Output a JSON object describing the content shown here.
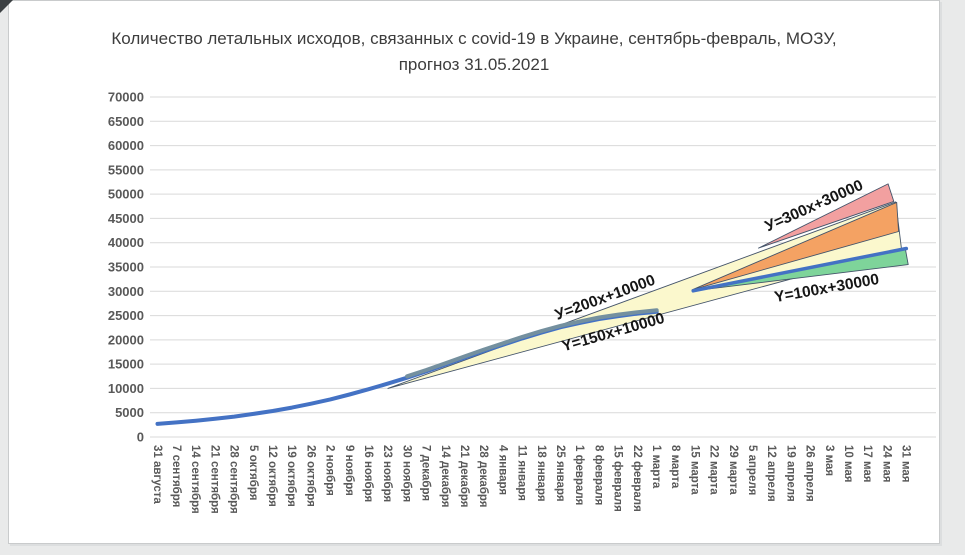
{
  "page": {
    "background_color": "#e9eaea",
    "panel_color": "#ffffff"
  },
  "chart_data": {
    "type": "line",
    "title": "Количество летальных исходов, связанных с covid-19 в Украине, сентябрь-февраль, МОЗУ, прогноз 31.05.2021",
    "title_lines": [
      "Количество летальных исходов, связанных с covid-19 в Украине, сентябрь-февраль, МОЗУ,",
      "прогноз 31.05.2021"
    ],
    "xlabel": "",
    "ylabel": "",
    "ylim": [
      0,
      70000
    ],
    "grid": true,
    "legend": "none",
    "yticks": [
      0,
      5000,
      10000,
      15000,
      20000,
      25000,
      30000,
      35000,
      40000,
      45000,
      50000,
      55000,
      60000,
      65000,
      70000
    ],
    "categories": [
      "31 августа",
      "7 сентября",
      "14 сентября",
      "21 сентября",
      "28 сентября",
      "5 октября",
      "12 октября",
      "19 октября",
      "26 октября",
      "2 ноября",
      "9 ноября",
      "16 ноября",
      "23 ноября",
      "30 ноября",
      "7 декабря",
      "14 декабря",
      "21 декабря",
      "28 декабря",
      "4 января",
      "11 января",
      "18 января",
      "25 января",
      "1 февраля",
      "8 февраля",
      "15 февраля",
      "22 февраля",
      "1 марта",
      "8 марта",
      "15 марта",
      "22 марта",
      "29 марта",
      "5 апреля",
      "12 апреля",
      "19 апреля",
      "26 апреля",
      "3 мая",
      "10 мая",
      "17 мая",
      "24 мая",
      "31 мая"
    ],
    "series": [
      {
        "name": "actual-deaths",
        "color": "#4472C4",
        "width": 4,
        "points": [
          [
            0,
            2700
          ],
          [
            1,
            3000
          ],
          [
            2,
            3350
          ],
          [
            3,
            3750
          ],
          [
            4,
            4200
          ],
          [
            5,
            4750
          ],
          [
            6,
            5350
          ],
          [
            7,
            6050
          ],
          [
            8,
            6850
          ],
          [
            9,
            7750
          ],
          [
            10,
            8750
          ],
          [
            11,
            9850
          ],
          [
            12,
            11000
          ],
          [
            13,
            12200
          ],
          [
            14,
            13500
          ],
          [
            15,
            14900
          ],
          [
            16,
            16300
          ],
          [
            17,
            17700
          ],
          [
            18,
            19000
          ],
          [
            19,
            20300
          ],
          [
            20,
            21500
          ],
          [
            21,
            22600
          ],
          [
            22,
            23500
          ],
          [
            23,
            24300
          ],
          [
            24,
            24900
          ],
          [
            25,
            25400
          ],
          [
            26,
            25800
          ]
        ]
      },
      {
        "name": "actual-deaths-overlay",
        "color": "#74909F",
        "width": 4,
        "points": [
          [
            13,
            12500
          ],
          [
            14,
            13800
          ],
          [
            15,
            15200
          ],
          [
            16,
            16600
          ],
          [
            17,
            18000
          ],
          [
            18,
            19300
          ],
          [
            19,
            20600
          ],
          [
            20,
            21800
          ],
          [
            21,
            22900
          ],
          [
            22,
            23800
          ],
          [
            23,
            24600
          ],
          [
            24,
            25200
          ],
          [
            25,
            25700
          ],
          [
            26,
            26100
          ]
        ]
      },
      {
        "name": "forecast-lower-trend",
        "color": "#4472C4",
        "width": 3.5,
        "points": [
          [
            27.9,
            30100
          ],
          [
            39,
            38800
          ]
        ]
      }
    ],
    "bands": [
      {
        "name": "forecast-band-yellow-main",
        "label_top": "У=200х+10000",
        "label_bottom": "Y=150х+10000",
        "color": "#FBF8CD",
        "edge_color": "#44546A",
        "points": [
          [
            12,
            10000
          ],
          [
            38.45,
            48400
          ],
          [
            38.75,
            38700
          ]
        ]
      },
      {
        "name": "forecast-band-orange",
        "color": "#F4A263",
        "edge_color": "#44546A",
        "points": [
          [
            27.85,
            30300
          ],
          [
            38.5,
            48300
          ],
          [
            38.6,
            42300
          ]
        ]
      },
      {
        "name": "forecast-band-pink",
        "label_top": "У=300х+30000",
        "color": "#F2A0A0",
        "edge_color": "#44546A",
        "points": [
          [
            31.3,
            38900
          ],
          [
            38.05,
            52100
          ],
          [
            38.35,
            48500
          ]
        ]
      },
      {
        "name": "forecast-band-green",
        "label_bottom": "Y=100х+30000",
        "color": "#7ED49A",
        "edge_color": "#44546A",
        "points": [
          [
            27.9,
            30100
          ],
          [
            38.95,
            38800
          ],
          [
            39.1,
            35500
          ]
        ]
      }
    ],
    "annotations": [
      {
        "text": "У=200х+10000",
        "at": [
          23.4,
          27800
        ],
        "rotate": -20
      },
      {
        "text": "Y=150х+10000",
        "at": [
          23.8,
          20600
        ],
        "rotate": -16
      },
      {
        "text": "У=300х+30000",
        "at": [
          34.3,
          46700
        ],
        "rotate": -24
      },
      {
        "text": "Y=100х+30000",
        "at": [
          34.9,
          29650
        ],
        "rotate": -10
      }
    ]
  }
}
